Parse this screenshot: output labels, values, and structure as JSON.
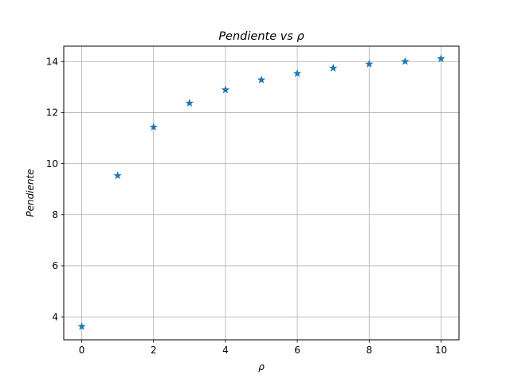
{
  "chart_data": {
    "type": "scatter",
    "title": "Pendiente vs ρ",
    "xlabel": "ρ",
    "ylabel": "Pendiente",
    "xlim": [
      -0.5,
      10.5
    ],
    "ylim": [
      3.1,
      14.6
    ],
    "xticks": [
      0,
      2,
      4,
      6,
      8,
      10
    ],
    "yticks": [
      4,
      6,
      8,
      10,
      12,
      14
    ],
    "grid": true,
    "marker": "star",
    "color": "#1f77b4",
    "series": [
      {
        "x": [
          0,
          1,
          2,
          3,
          4,
          5,
          6,
          7,
          8,
          9,
          10
        ],
        "y": [
          3.62,
          9.53,
          11.43,
          12.37,
          12.89,
          13.28,
          13.53,
          13.74,
          13.9,
          14.0,
          14.11
        ]
      }
    ]
  }
}
